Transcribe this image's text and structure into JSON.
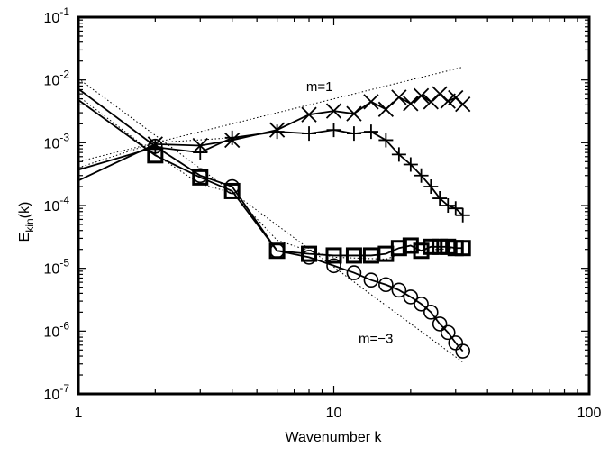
{
  "chart_data": {
    "type": "line",
    "xscale": "log",
    "yscale": "log",
    "xlim": [
      1,
      100
    ],
    "ylim": [
      1e-07,
      0.1
    ],
    "xlabel": "Wavenumber k",
    "ylabel": {
      "base": "E",
      "sub": "kin",
      "suffix": "(k)"
    },
    "x_ticks": [
      {
        "value": 1,
        "label": "1"
      },
      {
        "value": 10,
        "label": "10"
      },
      {
        "value": 100,
        "label": "100"
      }
    ],
    "y_ticks": [
      {
        "value": 1e-07,
        "base": "10",
        "exp": "-7"
      },
      {
        "value": 1e-06,
        "base": "10",
        "exp": "-6"
      },
      {
        "value": 1e-05,
        "base": "10",
        "exp": "-5"
      },
      {
        "value": 0.0001,
        "base": "10",
        "exp": "-4"
      },
      {
        "value": 0.001,
        "base": "10",
        "exp": "-3"
      },
      {
        "value": 0.01,
        "base": "10",
        "exp": "-2"
      },
      {
        "value": 0.1,
        "base": "10",
        "exp": "-1"
      }
    ],
    "grid": false,
    "series": [
      {
        "marker": "x",
        "line": "solid",
        "x": [
          1,
          2,
          3,
          4,
          6,
          8,
          10,
          12,
          14,
          16,
          18,
          20,
          22,
          24,
          26,
          28,
          30,
          32
        ],
        "y": [
          0.00025,
          0.00095,
          0.0009,
          0.0011,
          0.0016,
          0.0028,
          0.0032,
          0.0029,
          0.0045,
          0.0034,
          0.0053,
          0.0042,
          0.0056,
          0.0045,
          0.006,
          0.0046,
          0.0052,
          0.0041
        ]
      },
      {
        "marker": "plus",
        "line": "solid",
        "x": [
          1,
          2,
          3,
          4,
          6,
          8,
          10,
          12,
          14,
          16,
          18,
          20,
          22,
          24,
          26,
          28,
          30,
          32
        ],
        "y": [
          0.00037,
          0.00085,
          0.0007,
          0.0012,
          0.0015,
          0.0014,
          0.0016,
          0.0014,
          0.0015,
          0.0011,
          0.00065,
          0.00045,
          0.0003,
          0.0002,
          0.00013,
          0.0001,
          9e-05,
          7e-05
        ]
      },
      {
        "marker": "circle",
        "line": "solid",
        "x": [
          1,
          2,
          3,
          4,
          6,
          8,
          10,
          12,
          14,
          16,
          18,
          20,
          22,
          24,
          26,
          28,
          30,
          32
        ],
        "y": [
          0.0072,
          0.00088,
          0.0003,
          0.0002,
          1.9e-05,
          1.5e-05,
          1.1e-05,
          8.5e-06,
          6.5e-06,
          5.5e-06,
          4.5e-06,
          3.5e-06,
          2.7e-06,
          2e-06,
          1.3e-06,
          9.5e-07,
          6.5e-07,
          4.8e-07
        ]
      },
      {
        "marker": "square",
        "line": "solid",
        "x": [
          1,
          2,
          3,
          4,
          6,
          8,
          10,
          12,
          14,
          16,
          18,
          20,
          22,
          24,
          26,
          28,
          30,
          32
        ],
        "y": [
          0.0048,
          0.00063,
          0.00028,
          0.00017,
          1.9e-05,
          1.7e-05,
          1.6e-05,
          1.6e-05,
          1.6e-05,
          1.7e-05,
          2.1e-05,
          2.3e-05,
          1.9e-05,
          2.2e-05,
          2.2e-05,
          2.2e-05,
          2.1e-05,
          2.1e-05
        ]
      }
    ],
    "reference_lines": [
      {
        "label": "m=1",
        "style": "dotted",
        "x": [
          1,
          32
        ],
        "y": [
          0.0005,
          0.016
        ]
      },
      {
        "label": "m=-3",
        "style": "dotted",
        "x": [
          1,
          32
        ],
        "y": [
          0.0105,
          3.2e-07
        ]
      }
    ],
    "dotted_overlays": [
      {
        "style": "dotted",
        "x": [
          1,
          2,
          3,
          4,
          6,
          8,
          10,
          16,
          20,
          32
        ],
        "y": [
          0.0055,
          0.00065,
          0.00022,
          0.00016,
          2.8e-05,
          1.9e-05,
          1.5e-05,
          1.4e-05,
          1.9e-05,
          2.1e-05
        ]
      },
      {
        "style": "dotted",
        "x": [
          1,
          2,
          4
        ],
        "y": [
          0.0004,
          0.001,
          0.0012
        ]
      }
    ],
    "annotations": [
      {
        "text": "m=1",
        "x": 7.8,
        "y": 0.0066
      },
      {
        "text": "m=−3",
        "x": 12.5,
        "y": 6.5e-07
      }
    ]
  }
}
